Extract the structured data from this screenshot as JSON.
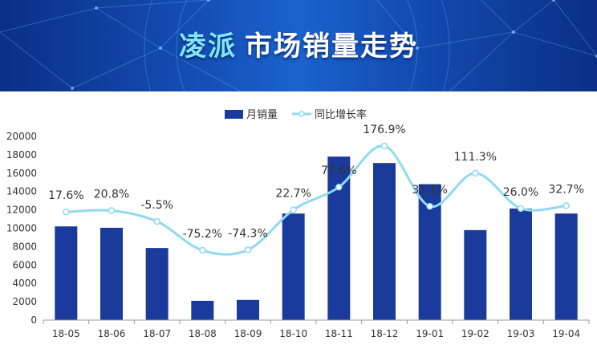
{
  "banner": {
    "brand": "凌派",
    "title": "市场销量走势"
  },
  "colors": {
    "bar": "#1a3a9c",
    "line": "#8fdaf0",
    "marker_fill": "#ffffff",
    "axis": "#9a9a9a"
  },
  "chart_data": {
    "type": "bar",
    "categories": [
      "18-05",
      "18-06",
      "18-07",
      "18-08",
      "18-09",
      "18-10",
      "18-11",
      "18-12",
      "19-01",
      "19-02",
      "19-03",
      "19-04"
    ],
    "series": [
      {
        "name": "月销量",
        "type": "bar",
        "axis": "left",
        "values": [
          10200,
          10050,
          7850,
          2100,
          2200,
          11600,
          17800,
          17100,
          14800,
          9800,
          12150,
          11600
        ]
      },
      {
        "name": "同比增长率",
        "type": "line",
        "smooth": true,
        "axis": "right",
        "values": [
          17.6,
          20.8,
          -5.5,
          -75.2,
          -74.3,
          22.7,
          77.6,
          176.9,
          31.1,
          111.3,
          26.0,
          32.7
        ]
      }
    ],
    "data_labels": [
      "17.6%",
      "20.8%",
      "-5.5%",
      "-75.2%",
      "-74.3%",
      "22.7%",
      "77.6%",
      "176.9%",
      "31.1%",
      "111.3%",
      "26.0%",
      "32.7%"
    ],
    "yticks": [
      "0",
      "2000",
      "4000",
      "6000",
      "8000",
      "10000",
      "12000",
      "14000",
      "16000",
      "18000",
      "20000"
    ],
    "ylim": [
      0,
      20000
    ],
    "secondary_axis_visible": false,
    "legend_position": "top-center",
    "grid": false
  }
}
